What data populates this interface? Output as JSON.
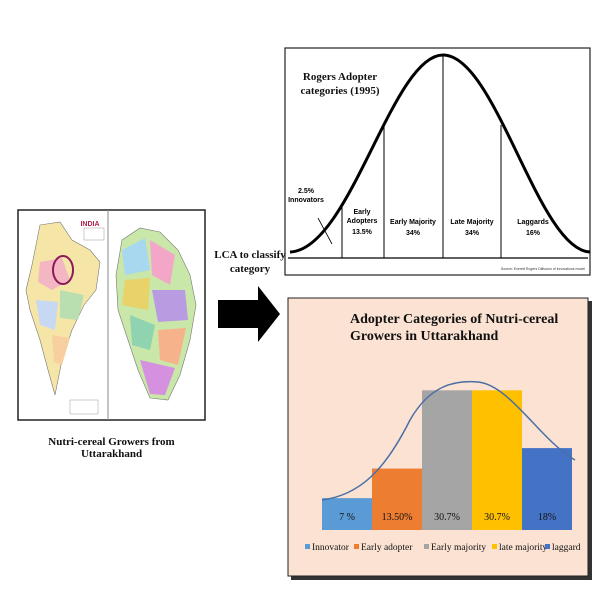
{
  "map_panel": {
    "country_label": "INDIA",
    "caption": "Nutri-cereal Growers from Uttarakhand"
  },
  "arrow_label": "LCA to classify category",
  "rogers_diagram": {
    "title": "Rogers Adopter categories (1995)",
    "segments": [
      {
        "name_lines": [
          "Innovators"
        ],
        "share": "2.5%"
      },
      {
        "name_lines": [
          "Early",
          "Adopters"
        ],
        "share": "13.5%"
      },
      {
        "name_lines": [
          "Early Majority"
        ],
        "share": "34%"
      },
      {
        "name_lines": [
          "Late Majority"
        ],
        "share": "34%"
      },
      {
        "name_lines": [
          "Laggards"
        ],
        "share": "16%"
      }
    ],
    "source": "Source: Everett Rogers Diffusion of Innovations model"
  },
  "chart_data": {
    "type": "bar",
    "title": "Adopter Categories of Nutri-cereal Growers in Uttarakhand",
    "categories": [
      "Innovator",
      "Early adopter",
      "Early majority",
      "late majority",
      "laggard"
    ],
    "values": [
      7,
      13.5,
      30.7,
      30.7,
      18
    ],
    "value_labels": [
      "7 %",
      "13.50%",
      "30.7%",
      "30.7%",
      "18%"
    ],
    "colors": [
      "#5b9bd5",
      "#ed7d31",
      "#a5a5a5",
      "#ffc000",
      "#4472c4"
    ],
    "legend": "bottom"
  }
}
